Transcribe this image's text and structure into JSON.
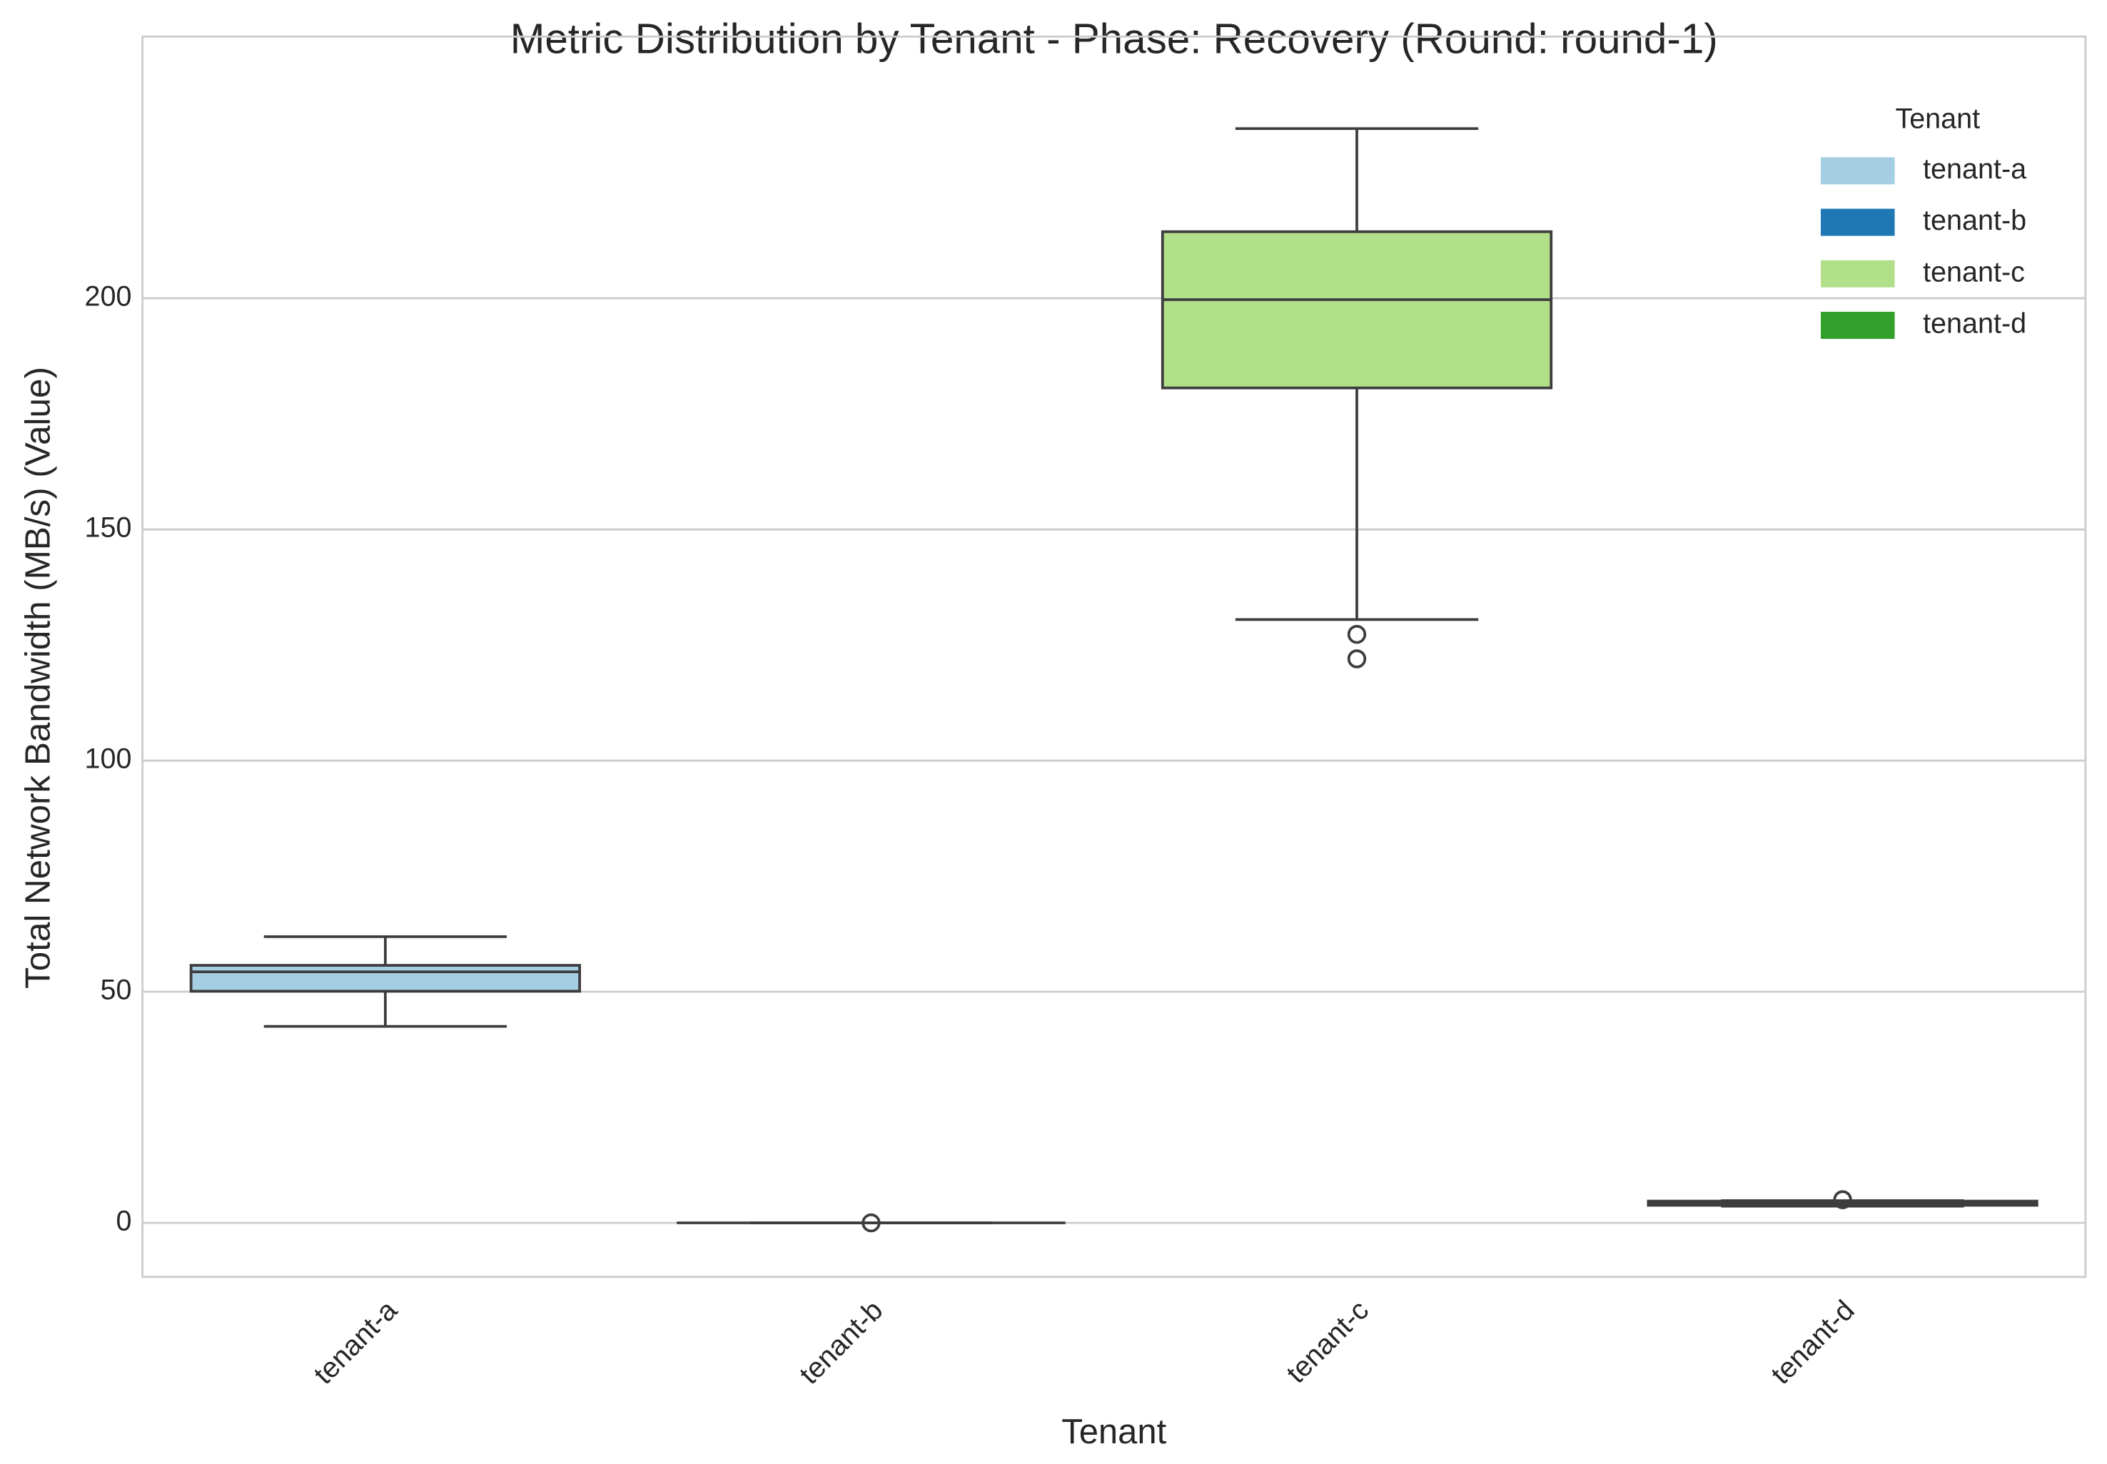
{
  "chart_data": {
    "type": "box",
    "title": "Metric Distribution by Tenant - Phase: Recovery (Round: round-1)",
    "x_label": "Tenant",
    "y_label": "Total Network Bandwidth (MB/s) (Value)",
    "categories": [
      "tenant-a",
      "tenant-b",
      "tenant-c",
      "tenant-d"
    ],
    "series": [
      {
        "name": "tenant-a",
        "color": "#a6cee3",
        "whislo": 42.5,
        "q1": 50.1,
        "med": 54.3,
        "q3": 55.7,
        "whishi": 61.9,
        "fliers": []
      },
      {
        "name": "tenant-b",
        "color": "#1f78b4",
        "whislo": 0,
        "q1": 0,
        "med": 0,
        "q3": 0,
        "whishi": 0,
        "fliers": [
          0
        ]
      },
      {
        "name": "tenant-c",
        "color": "#b2df8a",
        "whislo": 130.5,
        "q1": 180.6,
        "med": 199.7,
        "q3": 214.4,
        "whishi": 236.7,
        "fliers": [
          127.3,
          122
        ]
      },
      {
        "name": "tenant-d",
        "color": "#33a02c",
        "whislo": 3.6,
        "q1": 3.8,
        "med": 4.3,
        "q3": 4.7,
        "whishi": 4.8,
        "fliers": [
          5
        ]
      }
    ],
    "legend_title": "Tenant",
    "legend": "upper right",
    "ylim": [
      -11.7,
      256.6
    ],
    "yticks": [
      0,
      50,
      100,
      150,
      200
    ],
    "grid": true
  }
}
